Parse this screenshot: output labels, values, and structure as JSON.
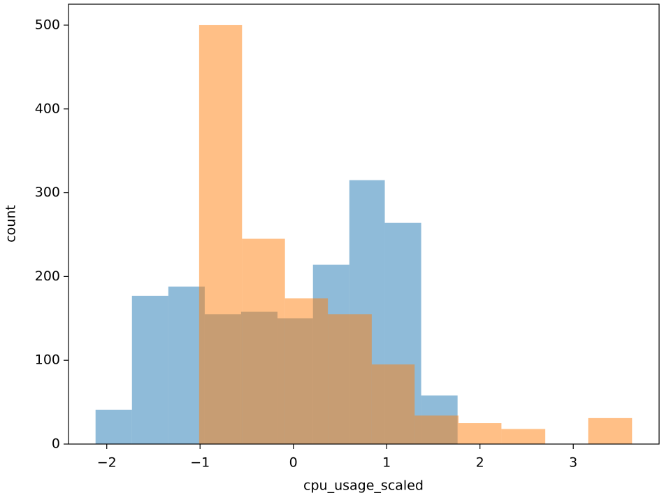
{
  "chart_data": {
    "type": "histogram",
    "xlabel": "cpu_usage_scaled",
    "ylabel": "count",
    "series": [
      {
        "color": "#1f77b4",
        "alpha": 0.5,
        "bins": [
          -2.12,
          -1.73,
          -1.34,
          -0.95,
          -0.56,
          -0.17,
          0.21,
          0.6,
          0.98,
          1.37,
          1.76
        ],
        "values": [
          41,
          177,
          188,
          155,
          158,
          150,
          214,
          315,
          264,
          58
        ]
      },
      {
        "color": "#ff7f0e",
        "alpha": 0.5,
        "bins": [
          -1.01,
          -0.55,
          -0.09,
          0.37,
          0.84,
          1.3,
          1.77,
          2.23,
          2.7,
          3.16,
          3.63
        ],
        "values": [
          500,
          245,
          174,
          155,
          95,
          34,
          25,
          18,
          0,
          31
        ]
      }
    ],
    "xlim": [
      -2.41,
      3.92
    ],
    "ylim": [
      0,
      525
    ],
    "xticks": [
      {
        "value": -2,
        "label": "−2"
      },
      {
        "value": -1,
        "label": "−1"
      },
      0,
      1,
      2,
      3
    ],
    "yticks": [
      0,
      100,
      200,
      300,
      400,
      500
    ]
  }
}
